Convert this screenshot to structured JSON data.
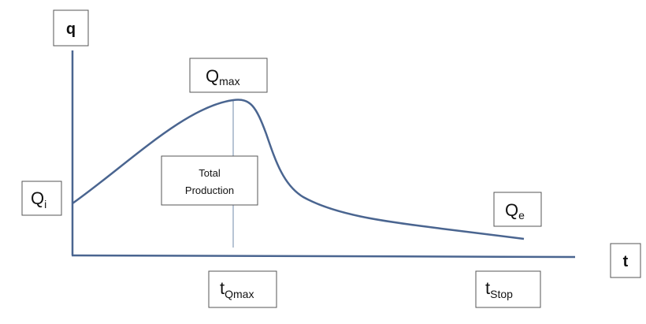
{
  "axes": {
    "y_label": "q",
    "x_label": "t"
  },
  "labels": {
    "q_max": {
      "main": "Q",
      "sub": "max"
    },
    "q_i": {
      "main": "Q",
      "sub": "i"
    },
    "q_e": {
      "main": "Q",
      "sub": "e"
    },
    "t_qmax": {
      "main": "t",
      "sub": "Qmax"
    },
    "t_stop": {
      "main": "t",
      "sub": "Stop"
    },
    "total_production": {
      "line1": "Total",
      "line2": "Production"
    }
  },
  "colors": {
    "line": "#4a6590",
    "box_border": "#555555"
  }
}
